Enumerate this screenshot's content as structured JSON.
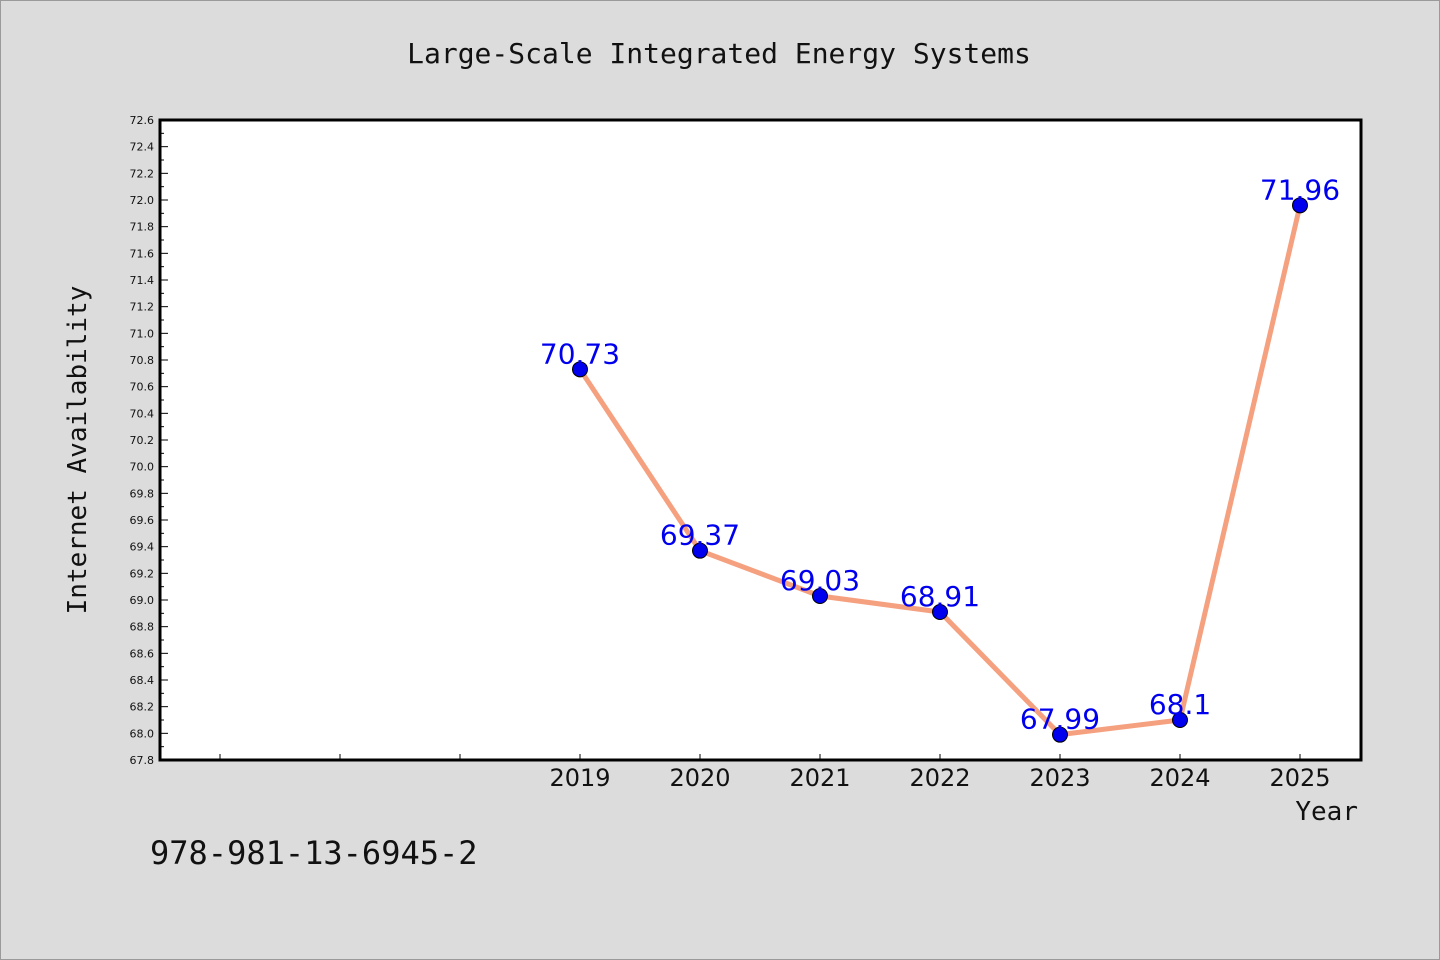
{
  "chart_data": {
    "type": "line",
    "title": "Large-Scale Integrated Energy Systems",
    "xlabel": "Year",
    "ylabel": "Internet Availability",
    "categories": [
      "2019",
      "2020",
      "2021",
      "2022",
      "2023",
      "2024",
      "2025"
    ],
    "series": [
      {
        "values": [
          70.73,
          69.37,
          69.03,
          68.91,
          67.99,
          68.1,
          71.96
        ]
      }
    ],
    "data_labels": [
      "70.73",
      "69.37",
      "69.03",
      "68.91",
      "67.99",
      "68.1",
      "71.96"
    ],
    "ylim": [
      67.8,
      72.6
    ],
    "yticks": [
      "67.8",
      "68.0",
      "68.2",
      "68.4",
      "68.6",
      "68.8",
      "69.0",
      "69.2",
      "69.4",
      "69.6",
      "69.8",
      "70.0",
      "70.2",
      "70.4",
      "70.6",
      "70.8",
      "71.0",
      "71.2",
      "71.4",
      "71.6",
      "71.8",
      "72.0",
      "72.2",
      "72.4",
      "72.6"
    ],
    "line_color": "#f5a07f",
    "marker_color": "#0000ee",
    "label_color": "#0000ee",
    "grid": false
  },
  "footer": {
    "text": "978-981-13-6945-2"
  }
}
